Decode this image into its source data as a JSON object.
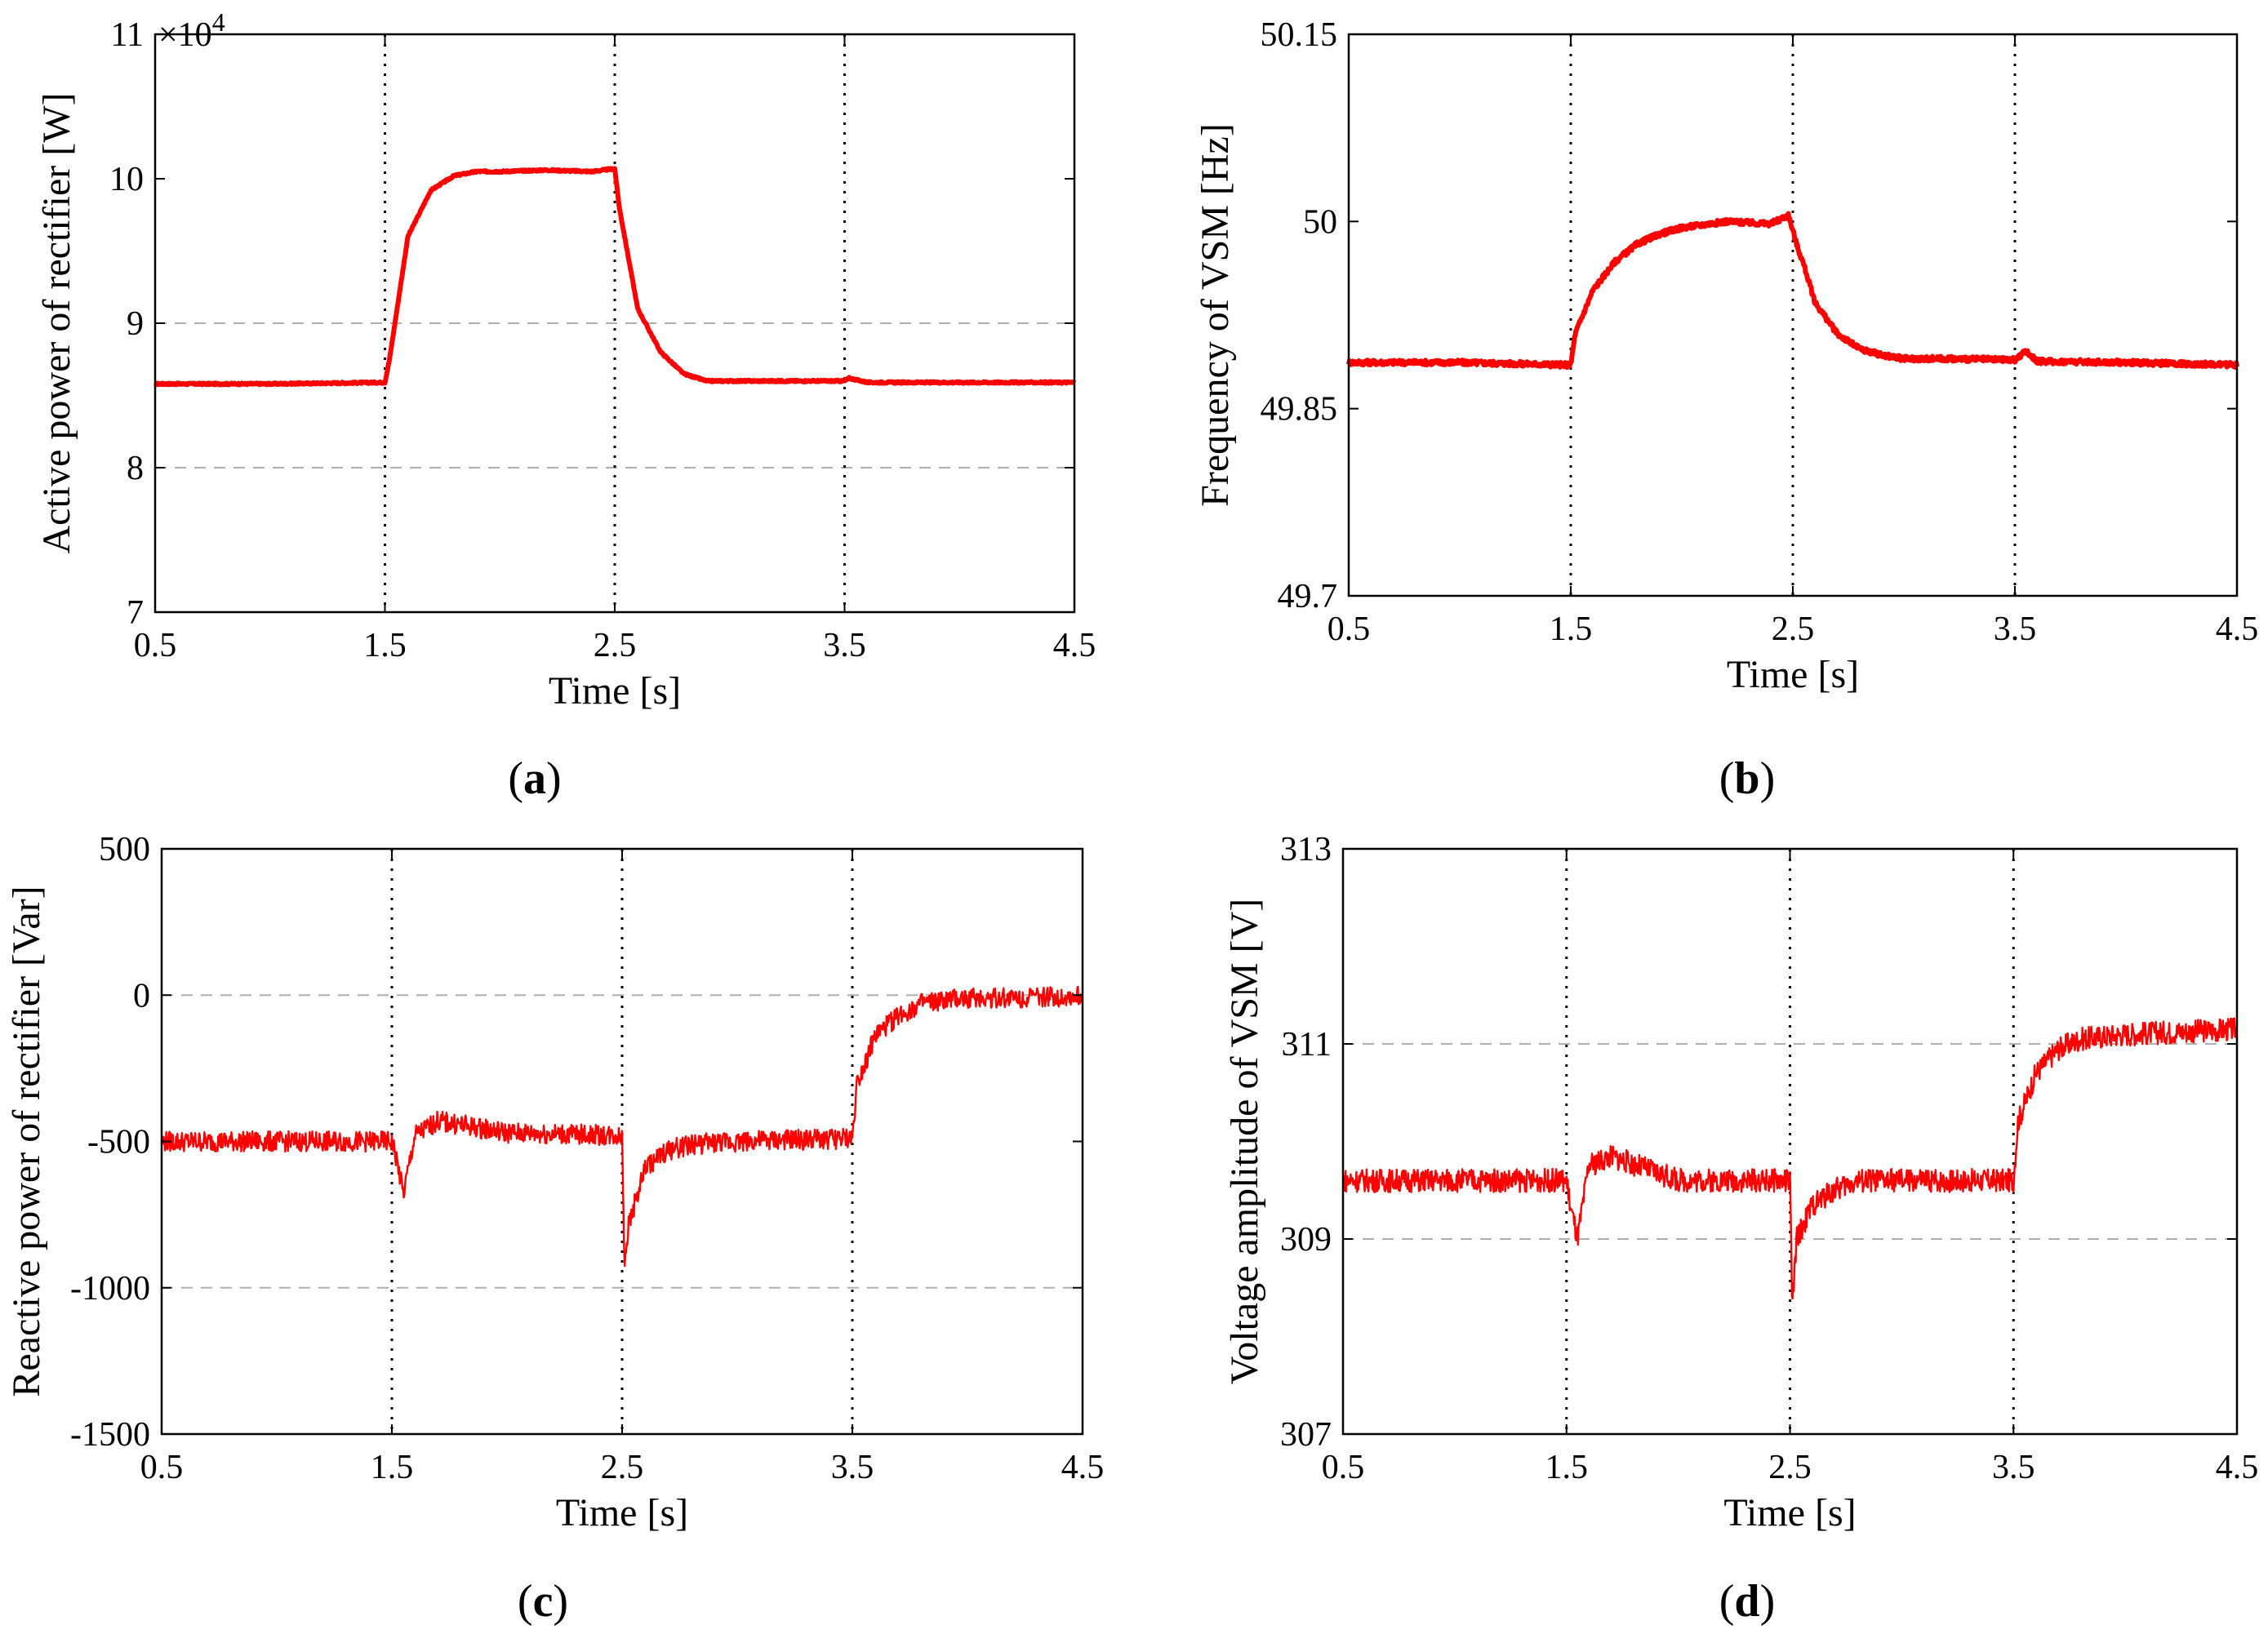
{
  "colors": {
    "series": "#ff0000",
    "grid": "#b0b0b0",
    "axis": "#000000"
  },
  "chart_data": [
    {
      "id": "a",
      "type": "line",
      "caption_letter": "a",
      "xlabel": "Time [s]",
      "ylabel": "Active power of rectifier [W]",
      "exponent_label": "×10",
      "exponent_power": "4",
      "xlim": [
        0.5,
        4.5
      ],
      "ylim": [
        7,
        11
      ],
      "xticks": [
        0.5,
        1.5,
        2.5,
        3.5,
        4.5
      ],
      "xtick_labels": [
        "0.5",
        "1.5",
        "2.5",
        "3.5",
        "4.5"
      ],
      "yticks": [
        7,
        8,
        9,
        10,
        11
      ],
      "ytick_labels": [
        "7",
        "8",
        "9",
        "10",
        "11"
      ],
      "hgrid": [
        8,
        9
      ],
      "vlines": [
        1.5,
        2.5,
        3.5
      ],
      "noise": 0.006,
      "series": [
        {
          "name": "Active power",
          "x": [
            0.5,
            1.0,
            1.5,
            1.52,
            1.6,
            1.7,
            1.8,
            1.9,
            2.0,
            2.2,
            2.4,
            2.5,
            2.52,
            2.6,
            2.7,
            2.8,
            2.9,
            3.0,
            3.2,
            3.5,
            3.52,
            3.6,
            4.0,
            4.5
          ],
          "y": [
            8.58,
            8.58,
            8.59,
            8.75,
            9.6,
            9.92,
            10.02,
            10.05,
            10.05,
            10.06,
            10.05,
            10.07,
            9.8,
            9.1,
            8.8,
            8.65,
            8.6,
            8.6,
            8.6,
            8.6,
            8.62,
            8.59,
            8.59,
            8.59
          ]
        }
      ]
    },
    {
      "id": "b",
      "type": "line",
      "caption_letter": "b",
      "xlabel": "Time [s]",
      "ylabel": "Frequency of VSM [Hz]",
      "xlim": [
        0.5,
        4.5
      ],
      "ylim": [
        49.7,
        50.15
      ],
      "xticks": [
        0.5,
        1.5,
        2.5,
        3.5,
        4.5
      ],
      "xtick_labels": [
        "0.5",
        "1.5",
        "2.5",
        "3.5",
        "4.5"
      ],
      "yticks": [
        49.7,
        49.85,
        50,
        50.15
      ],
      "ytick_labels": [
        "49.7",
        "49.85",
        "50",
        "50.15"
      ],
      "hgrid": [],
      "vlines": [
        1.5,
        2.5,
        3.5
      ],
      "noise": 0.002,
      "series": [
        {
          "name": "Frequency",
          "x": [
            0.5,
            1.0,
            1.5,
            1.52,
            1.6,
            1.7,
            1.8,
            1.9,
            2.0,
            2.2,
            2.4,
            2.48,
            2.52,
            2.55,
            2.6,
            2.7,
            2.8,
            2.9,
            3.0,
            3.2,
            3.5,
            3.55,
            3.6,
            4.0,
            4.5
          ],
          "y": [
            49.887,
            49.887,
            49.885,
            49.91,
            49.945,
            49.968,
            49.982,
            49.99,
            49.995,
            50.0,
            49.998,
            50.005,
            49.98,
            49.965,
            49.935,
            49.91,
            49.898,
            49.893,
            49.89,
            49.89,
            49.889,
            49.896,
            49.888,
            49.887,
            49.885
          ]
        }
      ]
    },
    {
      "id": "c",
      "type": "line",
      "caption_letter": "c",
      "xlabel": "Time [s]",
      "ylabel": "Reactive power of rectifier [Var]",
      "xlim": [
        0.5,
        4.5
      ],
      "ylim": [
        -1500,
        500
      ],
      "xticks": [
        0.5,
        1.5,
        2.5,
        3.5,
        4.5
      ],
      "xtick_labels": [
        "0.5",
        "1.5",
        "2.5",
        "3.5",
        "4.5"
      ],
      "yticks": [
        -1500,
        -1000,
        -500,
        0,
        500
      ],
      "ytick_labels": [
        "-1500",
        "-1000",
        "-500",
        "0",
        "500"
      ],
      "hgrid": [
        -1000,
        0
      ],
      "vlines": [
        1.5,
        2.5,
        3.5
      ],
      "noise": 35,
      "series": [
        {
          "name": "Reactive power",
          "x": [
            0.5,
            1.0,
            1.5,
            1.52,
            1.55,
            1.6,
            1.7,
            2.0,
            2.5,
            2.51,
            2.53,
            2.6,
            2.7,
            2.8,
            3.0,
            3.5,
            3.52,
            3.6,
            3.7,
            3.8,
            4.0,
            4.5
          ],
          "y": [
            -500,
            -500,
            -500,
            -560,
            -680,
            -480,
            -430,
            -470,
            -480,
            -900,
            -780,
            -590,
            -530,
            -510,
            -500,
            -490,
            -300,
            -140,
            -70,
            -30,
            -10,
            -5
          ]
        }
      ]
    },
    {
      "id": "d",
      "type": "line",
      "caption_letter": "d",
      "xlabel": "Time [s]",
      "ylabel": "Voltage amplitude of VSM [V]",
      "xlim": [
        0.5,
        4.5
      ],
      "ylim": [
        307,
        313
      ],
      "xticks": [
        0.5,
        1.5,
        2.5,
        3.5,
        4.5
      ],
      "xtick_labels": [
        "0.5",
        "1.5",
        "2.5",
        "3.5",
        "4.5"
      ],
      "yticks": [
        307,
        309,
        311,
        313
      ],
      "ytick_labels": [
        "307",
        "309",
        "311",
        "313"
      ],
      "hgrid": [
        309,
        311
      ],
      "vlines": [
        1.5,
        2.5,
        3.5
      ],
      "noise": 0.12,
      "series": [
        {
          "name": "Voltage amplitude",
          "x": [
            0.5,
            1.0,
            1.5,
            1.52,
            1.55,
            1.6,
            1.7,
            2.0,
            2.5,
            2.51,
            2.53,
            2.6,
            2.7,
            2.8,
            3.0,
            3.5,
            3.52,
            3.6,
            3.7,
            3.8,
            4.0,
            4.5
          ],
          "y": [
            309.6,
            309.6,
            309.6,
            309.3,
            309.0,
            309.75,
            309.85,
            309.6,
            309.6,
            308.3,
            309.0,
            309.35,
            309.5,
            309.6,
            309.6,
            309.6,
            310.2,
            310.7,
            310.95,
            311.05,
            311.1,
            311.15
          ]
        }
      ]
    }
  ]
}
